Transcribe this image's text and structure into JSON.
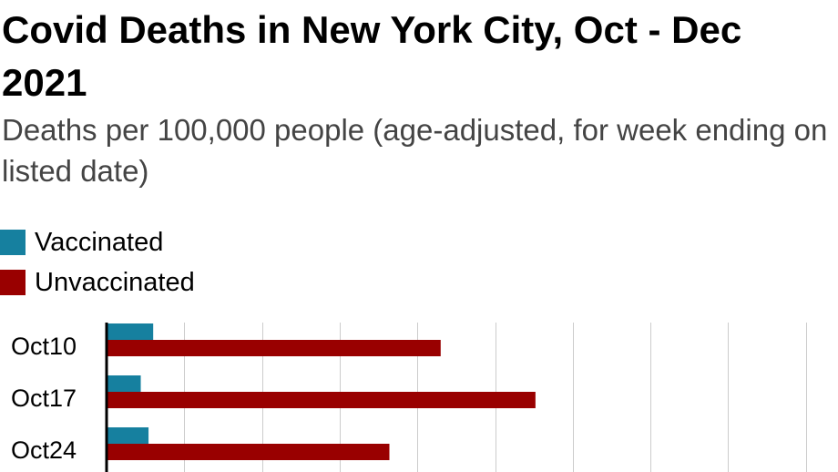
{
  "title": "Covid Deaths in New York City, Oct - Dec 2021",
  "subtitle": "Deaths per 100,000 people (age-adjusted, for week ending on listed date)",
  "colors": {
    "vaccinated": "#16809f",
    "unvaccinated": "#990000",
    "grid": "#cccccc",
    "axis": "#000000"
  },
  "chart_data": {
    "type": "bar",
    "orientation": "horizontal",
    "categories": [
      "Oct10",
      "Oct17",
      "Oct24"
    ],
    "series": [
      {
        "name": "Vaccinated",
        "values": [
          0.3,
          0.22,
          0.27
        ]
      },
      {
        "name": "Unvaccinated",
        "values": [
          2.15,
          2.76,
          1.82
        ]
      }
    ],
    "xlim": [
      0,
      4.5
    ],
    "grid": true,
    "legend_position": "top-left"
  }
}
